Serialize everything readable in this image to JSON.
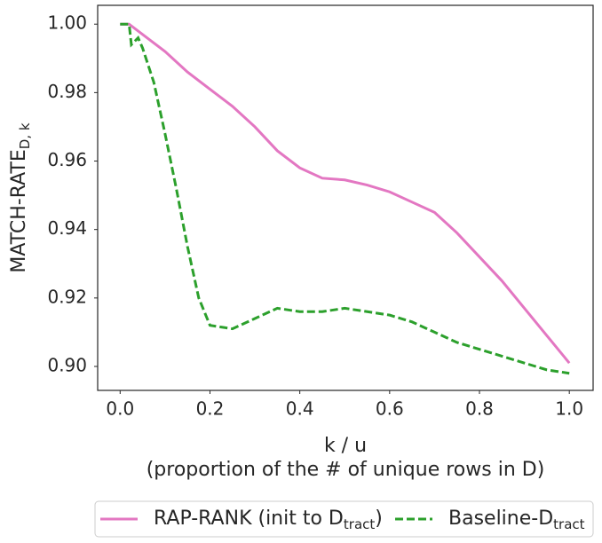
{
  "chart_data": {
    "type": "line",
    "xlabel": [
      "k / u",
      "(proportion of the # of unique rows in D)"
    ],
    "ylabel": {
      "text": "MATCH-RATE",
      "subscript": "D, k"
    },
    "xlim": [
      -0.05,
      1.053
    ],
    "ylim": [
      0.893,
      1.0055
    ],
    "xticks": [
      {
        "value": 0,
        "label": "0.0"
      },
      {
        "value": 0.2,
        "label": "0.2"
      },
      {
        "value": 0.4,
        "label": "0.4"
      },
      {
        "value": 0.6,
        "label": "0.6"
      },
      {
        "value": 0.8,
        "label": "0.8"
      },
      {
        "value": 1,
        "label": "1.0"
      }
    ],
    "yticks": [
      {
        "value": 0.9,
        "label": "0.90"
      },
      {
        "value": 0.92,
        "label": "0.92"
      },
      {
        "value": 0.94,
        "label": "0.94"
      },
      {
        "value": 0.96,
        "label": "0.96"
      },
      {
        "value": 0.98,
        "label": "0.98"
      },
      {
        "value": 1,
        "label": "1.00"
      }
    ],
    "legend": "lower center outside",
    "series": [
      {
        "name": [
          "RAP-RANK (init to D",
          "tract",
          ")"
        ],
        "color": "#e377c2",
        "dash": false,
        "x": [
          0,
          0.02,
          0.05,
          0.1,
          0.15,
          0.2,
          0.25,
          0.3,
          0.35,
          0.4,
          0.45,
          0.5,
          0.55,
          0.6,
          0.65,
          0.7,
          0.75,
          0.8,
          0.85,
          0.9,
          0.95,
          1.0
        ],
        "values": [
          1.0,
          1.0,
          0.997,
          0.992,
          0.986,
          0.981,
          0.976,
          0.97,
          0.963,
          0.958,
          0.955,
          0.9545,
          0.953,
          0.951,
          0.948,
          0.945,
          0.939,
          0.932,
          0.925,
          0.917,
          0.909,
          0.901
        ]
      },
      {
        "name": [
          "Baseline-D",
          "tract"
        ],
        "color": "#2ca02c",
        "dash": true,
        "x": [
          0,
          0.02,
          0.025,
          0.04,
          0.05,
          0.075,
          0.1,
          0.125,
          0.15,
          0.175,
          0.2,
          0.25,
          0.3,
          0.35,
          0.4,
          0.45,
          0.5,
          0.55,
          0.6,
          0.65,
          0.7,
          0.75,
          0.8,
          0.85,
          0.9,
          0.95,
          1.0
        ],
        "values": [
          1.0,
          1.0,
          0.994,
          0.996,
          0.993,
          0.983,
          0.968,
          0.952,
          0.935,
          0.92,
          0.912,
          0.911,
          0.914,
          0.917,
          0.916,
          0.916,
          0.917,
          0.916,
          0.915,
          0.913,
          0.91,
          0.907,
          0.905,
          0.903,
          0.901,
          0.899,
          0.898
        ]
      }
    ]
  }
}
